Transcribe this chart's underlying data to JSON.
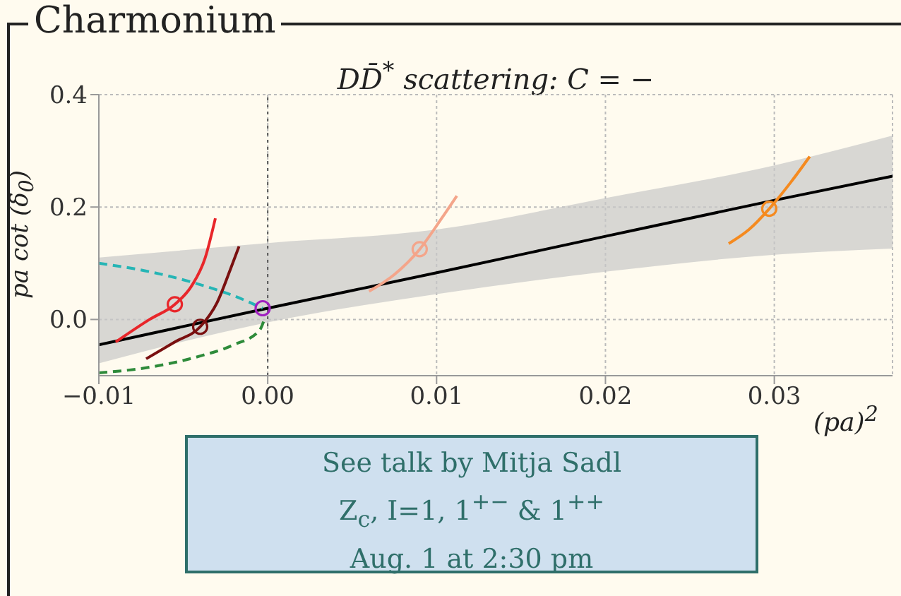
{
  "chart_data": {
    "type": "line",
    "title": "DD̄$^{*}$ scattering: C = −",
    "xlabel": "(pa)$^{2}$",
    "ylabel": "pa cot (δ$_{0}$)",
    "annotations": [
      "Charmonium",
      "See talk by Mitja Sadl",
      "Z$_{c}$, I=1, 1$^{+−}$ & 1$^{++}$",
      "Aug. 1 at 2:30 pm"
    ],
    "xlim": [
      -0.01,
      0.037
    ],
    "ylim": [
      -0.1,
      0.4
    ],
    "xticks": [
      {
        "value": -0.01,
        "label": "−0.01"
      },
      {
        "value": 0,
        "label": "0.00"
      },
      {
        "value": 0.01,
        "label": "0.01"
      },
      {
        "value": 0.02,
        "label": "0.02"
      },
      {
        "value": 0.03,
        "label": "0.03"
      }
    ],
    "yticks": [
      {
        "value": 0,
        "label": "0.0"
      },
      {
        "value": 0.2,
        "label": "0.2"
      },
      {
        "value": 0.4,
        "label": "0.4"
      }
    ],
    "grid": true,
    "ref_lines": [
      {
        "axis": "x",
        "value": 0,
        "color": "#555555",
        "line_style": "dotted"
      }
    ],
    "series": [
      {
        "color": "#000000",
        "x": [
          -0.01,
          0,
          0.01,
          0.02,
          0.03,
          0.037
        ],
        "values": [
          -0.045,
          0.02,
          0.083,
          0.148,
          0.212,
          0.255
        ],
        "lower": [
          -0.078,
          -0.005,
          0.045,
          0.085,
          0.115,
          0.126
        ],
        "upper": [
          0.11,
          0.136,
          0.16,
          0.216,
          0.274,
          0.327
        ]
      },
      {
        "color": "#26b5b5",
        "line_style": "dashed",
        "x": [
          -0.01,
          -0.007,
          -0.004,
          -0.002,
          -0.0003
        ],
        "values": [
          0.1,
          0.085,
          0.062,
          0.042,
          0.02
        ]
      },
      {
        "color": "#2e8b3a",
        "line_style": "dashed",
        "x": [
          -0.01,
          -0.007,
          -0.004,
          -0.002,
          -0.0005,
          -0.0002
        ],
        "values": [
          -0.095,
          -0.085,
          -0.065,
          -0.045,
          -0.02,
          0.0
        ]
      },
      {
        "color": "#e8262a",
        "x": [
          -0.009,
          -0.007,
          -0.0055,
          -0.0045,
          -0.0037,
          -0.0031
        ],
        "values": [
          -0.04,
          0.0,
          0.027,
          0.06,
          0.11,
          0.18
        ]
      },
      {
        "color": "#7a1010",
        "x": [
          -0.0072,
          -0.0055,
          -0.004,
          -0.003,
          -0.0022,
          -0.0017
        ],
        "values": [
          -0.07,
          -0.04,
          -0.013,
          0.03,
          0.09,
          0.13
        ]
      },
      {
        "color": "#f4a58a",
        "x": [
          0.006,
          0.0075,
          0.009,
          0.0103,
          0.0112
        ],
        "values": [
          0.05,
          0.08,
          0.125,
          0.18,
          0.22
        ]
      },
      {
        "color": "#f58a1f",
        "x": [
          0.0273,
          0.0285,
          0.0297,
          0.031,
          0.0321
        ],
        "values": [
          0.135,
          0.16,
          0.197,
          0.245,
          0.29
        ]
      },
      {
        "type": "scatter",
        "marker": "circle",
        "color": "#e8262a",
        "x": [
          -0.0055
        ],
        "values": [
          0.027
        ]
      },
      {
        "type": "scatter",
        "marker": "circle",
        "color": "#7a1010",
        "x": [
          -0.004
        ],
        "values": [
          -0.013
        ]
      },
      {
        "type": "scatter",
        "marker": "circle",
        "color": "#f4a58a",
        "x": [
          0.009
        ],
        "values": [
          0.125
        ]
      },
      {
        "type": "scatter",
        "marker": "circle",
        "color": "#f58a1f",
        "x": [
          0.0297
        ],
        "values": [
          0.197
        ]
      },
      {
        "type": "scatter",
        "marker": "circle",
        "color": "#a020c0",
        "x": [
          -0.0003
        ],
        "values": [
          0.02
        ]
      }
    ]
  }
}
